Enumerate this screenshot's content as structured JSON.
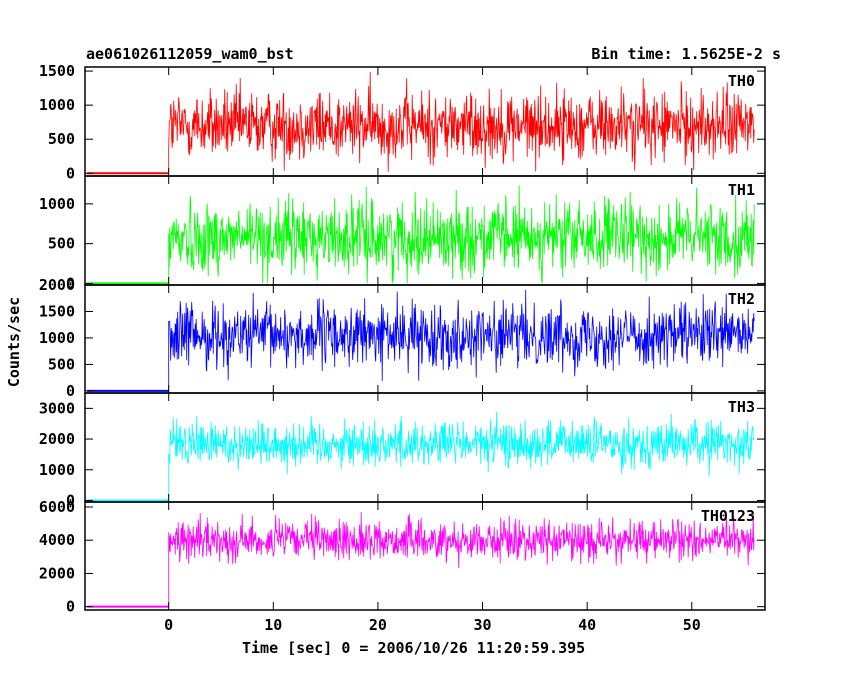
{
  "header": {
    "obs_id": "ae061026112059_wam0_bst",
    "bin_time": "Bin time: 1.5625E-2 s"
  },
  "axes": {
    "xlabel": "Time [sec] 0 = 2006/10/26 11:20:59.395",
    "ylabel": "Counts/sec"
  },
  "chart_data": {
    "type": "line",
    "title": "ae061026112059_wam0_bst",
    "subtitle": "Bin time: 1.5625E-2 s",
    "xlabel": "Time [sec] 0 = 2006/10/26 11:20:59.395",
    "ylabel": "Counts/sec",
    "xlim": [
      -8,
      57
    ],
    "x_ticks": [
      0,
      10,
      20,
      30,
      40,
      50
    ],
    "x_tick_labels": [
      "0",
      "10",
      "20",
      "30",
      "40",
      "50"
    ],
    "data_start": -7.8,
    "onset": 0,
    "data_end": 56,
    "grid": false,
    "panels": [
      {
        "name": "TH0",
        "color": "#ff0000",
        "ylim": [
          -40,
          1560
        ],
        "yticks": [
          0,
          500,
          1000,
          1500
        ],
        "ytick_labels": [
          "0",
          "500",
          "1000",
          "1500"
        ],
        "pre_level": 0,
        "mean": 700,
        "min": 0,
        "max": 1560,
        "spread": 260
      },
      {
        "name": "TH1",
        "color": "#00ff00",
        "ylim": [
          -20,
          1350
        ],
        "yticks": [
          0,
          500,
          1000
        ],
        "ytick_labels": [
          "0",
          "500",
          "1000"
        ],
        "pre_level": 0,
        "mean": 580,
        "min": 0,
        "max": 1350,
        "spread": 230
      },
      {
        "name": "TH2",
        "color": "#0000ff",
        "ylim": [
          -40,
          2000
        ],
        "yticks": [
          0,
          500,
          1000,
          1500,
          2000
        ],
        "ytick_labels": [
          "0",
          "500",
          "1000",
          "1500",
          "2000"
        ],
        "pre_level": 0,
        "mean": 1050,
        "min": 100,
        "max": 2000,
        "spread": 300
      },
      {
        "name": "TH3",
        "color": "#00ffff",
        "ylim": [
          -50,
          3500
        ],
        "yticks": [
          0,
          1000,
          2000,
          3000
        ],
        "ytick_labels": [
          "0",
          "1000",
          "2000",
          "3000"
        ],
        "pre_level": 0,
        "mean": 1850,
        "min": 600,
        "max": 3400,
        "spread": 380
      },
      {
        "name": "TH0123",
        "color": "#ff00ff",
        "ylim": [
          -200,
          6300
        ],
        "yticks": [
          0,
          2000,
          4000,
          6000
        ],
        "ytick_labels": [
          "0",
          "2000",
          "4000",
          "6000"
        ],
        "pre_level": 0,
        "mean": 4000,
        "min": 1800,
        "max": 6200,
        "spread": 600
      }
    ]
  }
}
